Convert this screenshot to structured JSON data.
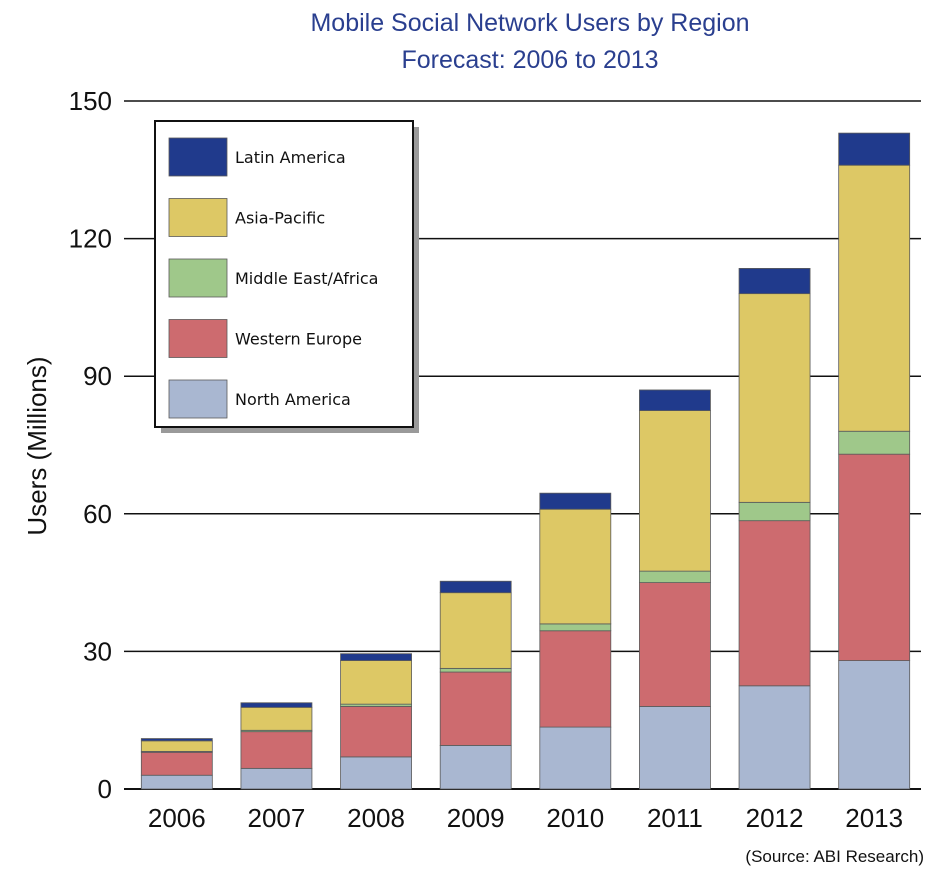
{
  "chart_data": {
    "type": "bar",
    "stacked": true,
    "title": "Mobile Social Network Users by Region",
    "subtitle": "Forecast: 2006 to 2013",
    "xlabel": "",
    "ylabel": "Users (Millions)",
    "ylim": [
      0,
      150
    ],
    "yticks": [
      0,
      30,
      60,
      90,
      120,
      150
    ],
    "grid": true,
    "legend_position": "top-left",
    "source": "(Source: ABI Research)",
    "categories": [
      "2006",
      "2007",
      "2008",
      "2009",
      "2010",
      "2011",
      "2012",
      "2013"
    ],
    "series": [
      {
        "name": "North America",
        "color": "#a9b7d1",
        "values": [
          3,
          4.5,
          7,
          9.5,
          13.5,
          18,
          22.5,
          28
        ]
      },
      {
        "name": "Western Europe",
        "color": "#cd6b6f",
        "values": [
          5,
          8,
          11,
          16,
          21,
          27,
          36,
          45
        ]
      },
      {
        "name": "Middle East/Africa",
        "color": "#9fc88a",
        "values": [
          0.2,
          0.3,
          0.5,
          0.8,
          1.5,
          2.5,
          4,
          5
        ]
      },
      {
        "name": "Asia-Pacific",
        "color": "#ddc865",
        "values": [
          2.3,
          5,
          9.5,
          16.5,
          25,
          35,
          45.5,
          58
        ]
      },
      {
        "name": "Latin America",
        "color": "#203a8c",
        "values": [
          0.5,
          1,
          1.5,
          2.5,
          3.5,
          4.5,
          5.5,
          7
        ]
      }
    ]
  }
}
